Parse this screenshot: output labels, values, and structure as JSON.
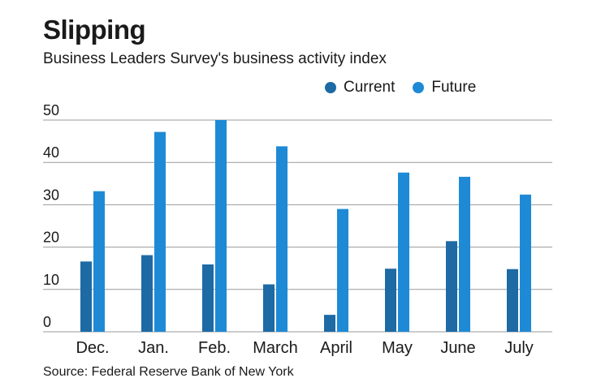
{
  "title": "Slipping",
  "subtitle": "Business Leaders Survey's business activity index",
  "source": "Source: Federal Reserve Bank of New York",
  "colors": {
    "current": "#1d6aa5",
    "future": "#1e8ad6",
    "grid": "#9a9a9a",
    "text": "#1a1a1a"
  },
  "chart_data": {
    "type": "bar",
    "title": "Slipping",
    "subtitle": "Business Leaders Survey's business activity index",
    "xlabel": "",
    "ylabel": "",
    "categories": [
      "Dec.",
      "Jan.",
      "Feb.",
      "March",
      "April",
      "May",
      "June",
      "July"
    ],
    "series": [
      {
        "name": "Current",
        "values": [
          16.6,
          18.1,
          15.9,
          11.2,
          4.0,
          14.9,
          21.4,
          14.8
        ]
      },
      {
        "name": "Future",
        "values": [
          33.2,
          47.2,
          50.0,
          43.8,
          29.0,
          37.6,
          36.6,
          32.4
        ]
      }
    ],
    "ylim": [
      0,
      50
    ],
    "yticks": [
      0,
      10,
      20,
      30,
      40,
      50
    ],
    "grid": true,
    "legend_position": "top-right"
  }
}
